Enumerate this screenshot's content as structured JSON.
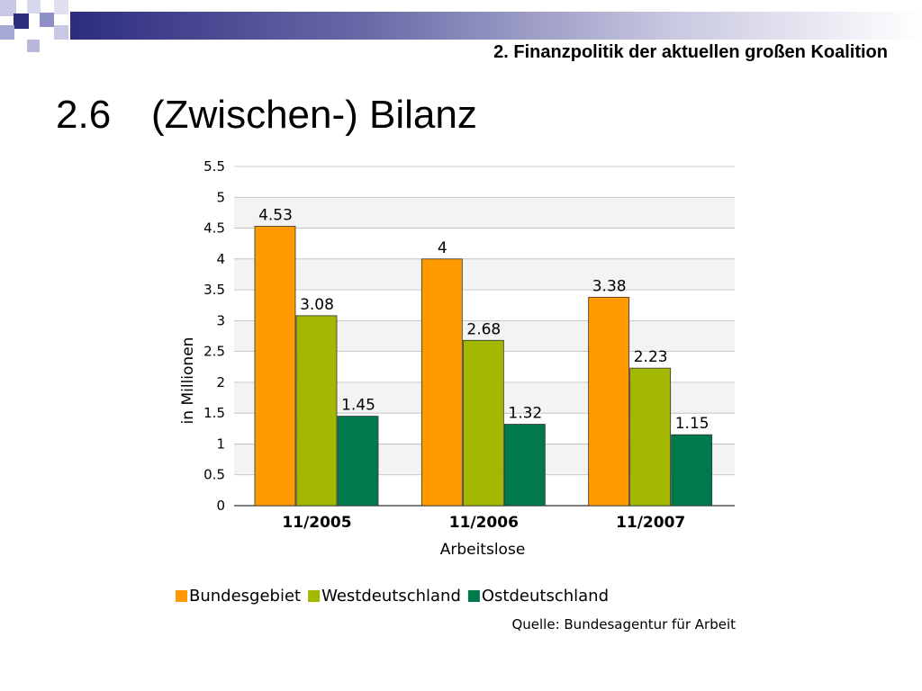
{
  "header": {
    "subtitle": "2. Finanzpolitik der aktuellen großen Koalition",
    "section_number": "2.6",
    "title": "(Zwischen-) Bilanz",
    "accent_color": "#2d2d80"
  },
  "chart_data": {
    "type": "bar",
    "title": "",
    "xlabel": "Arbeitslose",
    "ylabel": "in Millionen",
    "categories": [
      "11/2005",
      "11/2006",
      "11/2007"
    ],
    "series": [
      {
        "name": "Bundesgebiet",
        "color": "#ff9900",
        "values": [
          4.53,
          4,
          3.38
        ],
        "labels": [
          "4.53",
          "4",
          "3.38"
        ]
      },
      {
        "name": "Westdeutschland",
        "color": "#a3b800",
        "values": [
          3.08,
          2.68,
          2.23
        ],
        "labels": [
          "3.08",
          "2.68",
          "2.23"
        ]
      },
      {
        "name": "Ostdeutschland",
        "color": "#007a4a",
        "values": [
          1.45,
          1.32,
          1.15
        ],
        "labels": [
          "1.45",
          "1.32",
          "1.15"
        ]
      }
    ],
    "yticks": [
      "0",
      "0.5",
      "1",
      "1.5",
      "2",
      "2.5",
      "3",
      "3.5",
      "4",
      "4.5",
      "5",
      "5.5"
    ],
    "ylim": [
      0,
      5.5
    ],
    "grid": true,
    "legend": "bottom",
    "source": "Quelle: Bundesagentur für Arbeit"
  }
}
